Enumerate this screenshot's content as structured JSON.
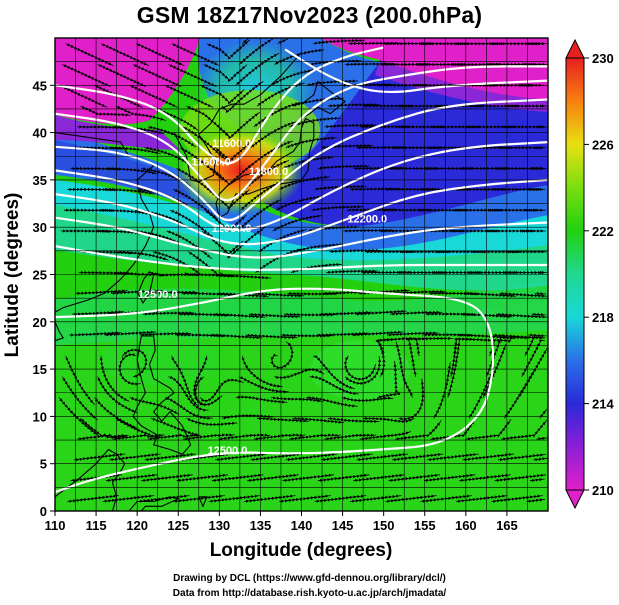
{
  "title": "GSM 18Z17Nov2023 (200.0hPa)",
  "x_axis": {
    "label": "Longitude (degrees)",
    "ticks": [
      "110",
      "115",
      "120",
      "125",
      "130",
      "135",
      "140",
      "145",
      "150",
      "155",
      "160",
      "165"
    ],
    "range": [
      110,
      170
    ]
  },
  "y_axis": {
    "label": "Latitude  (degrees)",
    "ticks": [
      "0",
      "5",
      "10",
      "15",
      "20",
      "25",
      "30",
      "35",
      "40",
      "45"
    ],
    "range": [
      0,
      50
    ]
  },
  "colorbar": {
    "ticks": [
      "210",
      "214",
      "218",
      "222",
      "226",
      "230"
    ],
    "range": [
      210,
      230
    ],
    "colors": [
      "#e020c8",
      "#2a2ad8",
      "#18d8d8",
      "#22d010",
      "#9ae010",
      "#e8e010",
      "#f88010",
      "#e82020"
    ]
  },
  "contour_labels": [
    {
      "text": "11600.0",
      "lon": 129,
      "lat": 36.5
    },
    {
      "text": "11600.0",
      "lon": 131.5,
      "lat": 38.5
    },
    {
      "text": "11800.0",
      "lon": 136,
      "lat": 35.5
    },
    {
      "text": "12000.0",
      "lon": 131.5,
      "lat": 29.5
    },
    {
      "text": "12200.0",
      "lon": 148,
      "lat": 30.5
    },
    {
      "text": "12500.0",
      "lon": 122.5,
      "lat": 22.5
    },
    {
      "text": "12500.0",
      "lon": 131,
      "lat": 6
    }
  ],
  "credits": {
    "line1": "Drawing by DCL (https://www.gfd-dennou.org/library/dcl/)",
    "line2": "Data from http://database.rish.kyoto-u.ac.jp/arch/jmadata/"
  }
}
